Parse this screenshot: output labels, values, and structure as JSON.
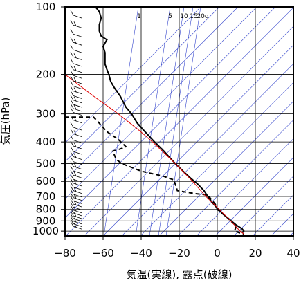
{
  "chart_data": {
    "type": "line",
    "title": "",
    "xlabel": "気温(実線), 露点(破線)",
    "ylabel": "気圧(hPa)",
    "xlim": [
      -80,
      40
    ],
    "ylim": [
      1050,
      100
    ],
    "y_scale": "log",
    "grid": true,
    "x_ticks": [
      -80,
      -60,
      -40,
      -20,
      0,
      20,
      40
    ],
    "y_ticks": [
      100,
      200,
      300,
      400,
      500,
      600,
      700,
      800,
      900,
      1000
    ],
    "mixing_ratio_labels": [
      "1",
      "5",
      "10",
      "15",
      "20g"
    ],
    "series": [
      {
        "role": "temperature",
        "style": "solid",
        "color": "#000000",
        "points": [
          [
            -64,
            100
          ],
          [
            -62,
            105
          ],
          [
            -61,
            112
          ],
          [
            -62,
            120
          ],
          [
            -62,
            128
          ],
          [
            -61,
            135
          ],
          [
            -58,
            140
          ],
          [
            -60,
            150
          ],
          [
            -59,
            160
          ],
          [
            -59,
            170
          ],
          [
            -59,
            180
          ],
          [
            -58,
            190
          ],
          [
            -57,
            200
          ],
          [
            -56,
            215
          ],
          [
            -54,
            230
          ],
          [
            -51,
            250
          ],
          [
            -48,
            280
          ],
          [
            -45,
            300
          ],
          [
            -42,
            330
          ],
          [
            -38,
            360
          ],
          [
            -33,
            400
          ],
          [
            -28,
            440
          ],
          [
            -24,
            480
          ],
          [
            -22,
            500
          ],
          [
            -18,
            540
          ],
          [
            -14,
            580
          ],
          [
            -10,
            620
          ],
          [
            -7,
            660
          ],
          [
            -5,
            700
          ],
          [
            -3,
            740
          ],
          [
            0,
            790
          ],
          [
            3,
            840
          ],
          [
            6,
            880
          ],
          [
            8,
            910
          ],
          [
            10,
            940
          ],
          [
            13,
            975
          ],
          [
            14,
            1000
          ],
          [
            13,
            1020
          ]
        ]
      },
      {
        "role": "dew_point",
        "style": "dashed",
        "color": "#000000",
        "points": [
          [
            -80,
            310
          ],
          [
            -72,
            310
          ],
          [
            -65,
            310
          ],
          [
            -62,
            330
          ],
          [
            -58,
            360
          ],
          [
            -52,
            390
          ],
          [
            -48,
            420
          ],
          [
            -51,
            430
          ],
          [
            -55,
            440
          ],
          [
            -53,
            480
          ],
          [
            -50,
            500
          ],
          [
            -40,
            540
          ],
          [
            -28,
            570
          ],
          [
            -23,
            590
          ],
          [
            -22,
            620
          ],
          [
            -21,
            660
          ],
          [
            -12,
            680
          ],
          [
            -5,
            690
          ],
          [
            -1,
            760
          ],
          [
            0,
            800
          ],
          [
            4,
            850
          ],
          [
            7,
            900
          ],
          [
            10,
            950
          ],
          [
            9,
            1000
          ],
          [
            12,
            1020
          ],
          [
            14,
            1030
          ]
        ]
      },
      {
        "role": "parcel",
        "style": "solid",
        "color": "#e00000",
        "points": [
          [
            -80,
            200
          ],
          [
            -65,
            250
          ],
          [
            -52,
            300
          ],
          [
            -42,
            350
          ],
          [
            -34,
            400
          ],
          [
            -22,
            500
          ],
          [
            -13,
            600
          ],
          [
            -6,
            700
          ],
          [
            1,
            800
          ],
          [
            7,
            900
          ],
          [
            12,
            1000
          ],
          [
            14,
            1030
          ]
        ]
      }
    ]
  }
}
